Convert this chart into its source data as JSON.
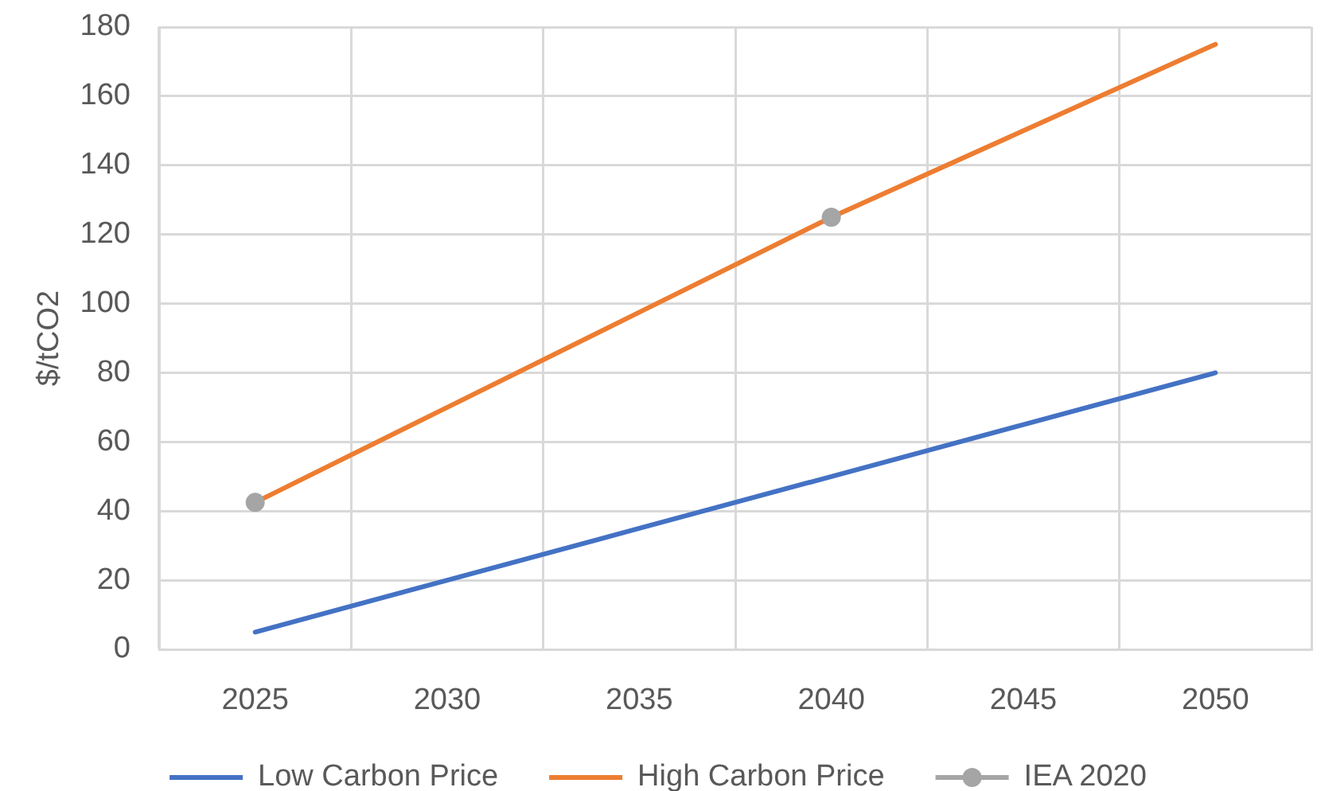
{
  "chart_data": {
    "type": "line",
    "ylabel": "$/tCO2",
    "categories": [
      "2025",
      "2030",
      "2035",
      "2040",
      "2045",
      "2050"
    ],
    "series": [
      {
        "name": "Low Carbon Price",
        "color": "#4472c4",
        "marker": "none",
        "values": [
          5,
          20,
          35,
          50,
          65,
          80
        ]
      },
      {
        "name": "High Carbon Price",
        "color": "#ed7d31",
        "marker": "none",
        "values": [
          42.5,
          70,
          97.5,
          125,
          150,
          175
        ]
      },
      {
        "name": "IEA 2020",
        "type": "scatter",
        "color": "#a5a5a5",
        "marker": "circle",
        "values": [
          42.5,
          null,
          null,
          125,
          null,
          null
        ]
      }
    ],
    "ylim": [
      0,
      180
    ],
    "yticks": [
      0,
      20,
      40,
      60,
      80,
      100,
      120,
      140,
      160,
      180
    ],
    "grid": true,
    "legend": "bottom"
  }
}
